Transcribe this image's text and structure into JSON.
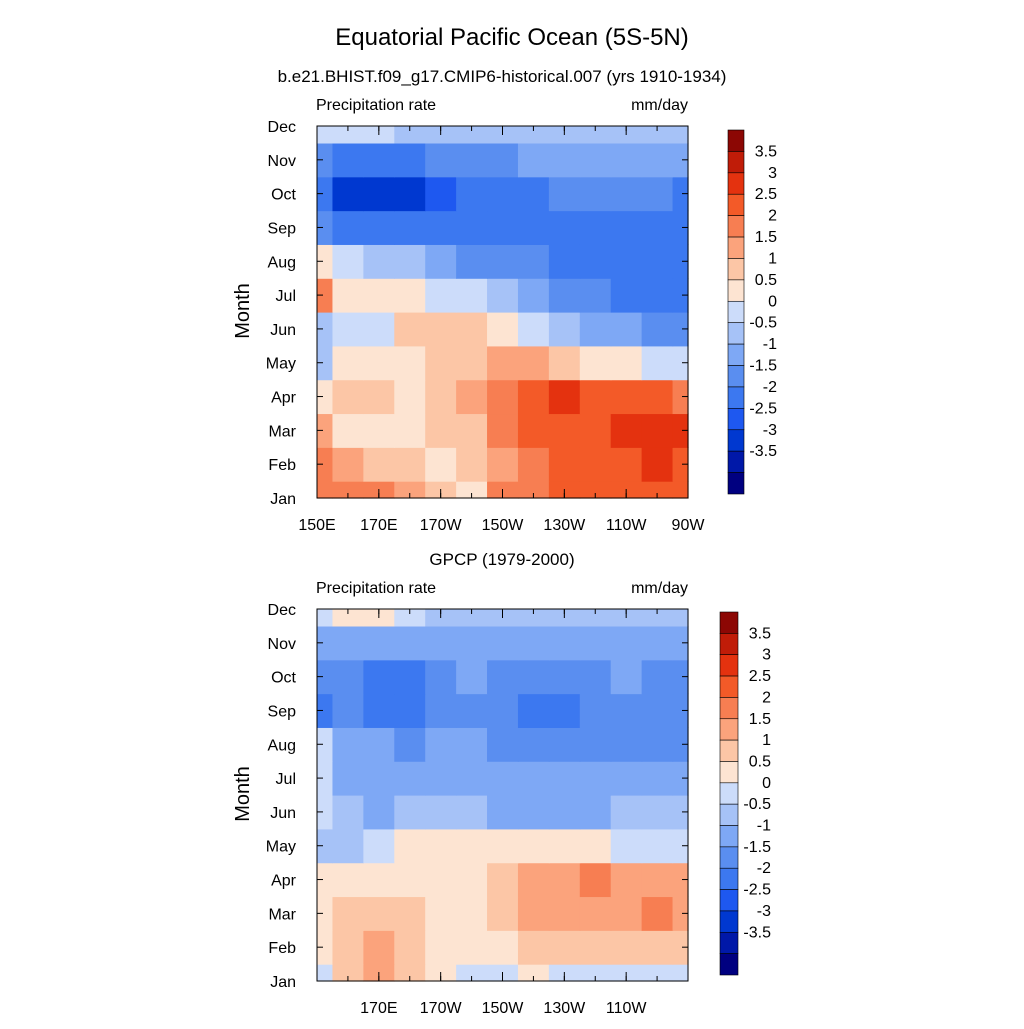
{
  "figure": {
    "title": "Equatorial Pacific Ocean (5S-5N)"
  },
  "colors": {
    "scale": [
      "#000080",
      "#0018a8",
      "#0038d0",
      "#1e58f0",
      "#3c78f0",
      "#5a8ef0",
      "#7ea8f5",
      "#a6c2f7",
      "#ccdcfa",
      "#fde4d2",
      "#fcc6a6",
      "#fba37c",
      "#f77e52",
      "#f35a28",
      "#e4320f",
      "#c01c08",
      "#8c0704"
    ]
  },
  "chart_data": [
    {
      "type": "heatmap",
      "title": "b.e21.BHIST.f09_g17.CMIP6-historical.007 (yrs 1910-1934)",
      "left_label": "Precipitation rate",
      "right_label": "mm/day",
      "ylabel": "Month",
      "xlabel": "",
      "x": [
        150,
        160,
        170,
        180,
        190,
        200,
        210,
        220,
        230,
        240,
        250,
        260,
        270
      ],
      "xlim": [
        150,
        270
      ],
      "x_tick_values": [
        150,
        170,
        190,
        210,
        230,
        250,
        270
      ],
      "x_tick_labels": [
        "150E",
        "170E",
        "170W",
        "150W",
        "130W",
        "110W",
        "90W"
      ],
      "y": [
        "Jan",
        "Feb",
        "Mar",
        "Apr",
        "May",
        "Jun",
        "Jul",
        "Aug",
        "Sep",
        "Oct",
        "Nov",
        "Dec"
      ],
      "values": [
        [
          2.4,
          2.0,
          2.1,
          1.6,
          1.0,
          0.9,
          2.0,
          2.4,
          2.5,
          2.6,
          2.7,
          2.8,
          2.7
        ],
        [
          2.2,
          1.6,
          1.4,
          1.1,
          0.9,
          1.0,
          1.8,
          2.2,
          2.5,
          2.7,
          2.9,
          3.0,
          2.9
        ],
        [
          1.5,
          0.7,
          0.6,
          0.6,
          1.2,
          1.4,
          2.2,
          2.5,
          2.7,
          2.9,
          3.1,
          3.4,
          3.1
        ],
        [
          0.6,
          1.1,
          1.3,
          0.7,
          1.3,
          1.5,
          2.3,
          2.6,
          3.1,
          2.8,
          2.6,
          2.6,
          2.4
        ],
        [
          -0.3,
          0.7,
          0.9,
          0.6,
          1.2,
          1.4,
          1.6,
          1.5,
          1.2,
          0.9,
          0.6,
          0.4,
          0.2
        ],
        [
          -0.4,
          0.2,
          0.3,
          1.1,
          1.2,
          1.0,
          0.6,
          0.1,
          -0.4,
          -0.7,
          -1.0,
          -1.2,
          -1.4
        ],
        [
          2.1,
          0.9,
          0.8,
          0.6,
          0.4,
          0.1,
          -0.4,
          -0.9,
          -1.2,
          -1.4,
          -1.6,
          -1.7,
          -1.8
        ],
        [
          0.7,
          0.1,
          -0.2,
          -0.5,
          -0.9,
          -1.2,
          -1.4,
          -1.5,
          -1.6,
          -1.7,
          -1.8,
          -1.9,
          -1.9
        ],
        [
          -1.3,
          -1.6,
          -1.7,
          -1.8,
          -1.8,
          -1.8,
          -1.7,
          -1.6,
          -1.7,
          -1.8,
          -1.8,
          -1.8,
          -1.7
        ],
        [
          -1.9,
          -2.6,
          -3.0,
          -2.6,
          -2.2,
          -1.9,
          -1.7,
          -1.6,
          -1.5,
          -1.5,
          -1.5,
          -1.4,
          -1.6
        ],
        [
          -1.2,
          -1.6,
          -1.7,
          -1.6,
          -1.4,
          -1.2,
          -1.1,
          -1.0,
          -0.9,
          -0.9,
          -0.8,
          -0.8,
          -0.9
        ],
        [
          0.1,
          0.3,
          0.2,
          -0.1,
          -0.3,
          -0.4,
          -0.5,
          -0.5,
          -0.5,
          -0.4,
          -0.3,
          -0.3,
          -0.4
        ]
      ],
      "colorbar": {
        "levels": [
          -3.5,
          -3,
          -2.5,
          -2,
          -1.5,
          -1,
          -0.5,
          0,
          0.5,
          1,
          1.5,
          2,
          2.5,
          3,
          3.5
        ],
        "labels": [
          "3.5",
          "3",
          "2.5",
          "2",
          "1.5",
          "1",
          "0.5",
          "0",
          "-0.5",
          "-1",
          "-1.5",
          "-2",
          "-2.5",
          "-3",
          "-3.5"
        ]
      }
    },
    {
      "type": "heatmap",
      "title": "GPCP (1979-2000)",
      "left_label": "Precipitation rate",
      "right_label": "mm/day",
      "ylabel": "Month",
      "xlabel": "",
      "x": [
        150,
        160,
        170,
        180,
        190,
        200,
        210,
        220,
        230,
        240,
        250,
        260,
        270
      ],
      "xlim": [
        150,
        270
      ],
      "x_tick_values": [
        170,
        190,
        210,
        230,
        250
      ],
      "x_tick_labels": [
        "170E",
        "170W",
        "150W",
        "130W",
        "110W"
      ],
      "y": [
        "Jan",
        "Feb",
        "Mar",
        "Apr",
        "May",
        "Jun",
        "Jul",
        "Aug",
        "Sep",
        "Oct",
        "Nov",
        "Dec"
      ],
      "values": [
        [
          0.4,
          1.2,
          1.5,
          1.3,
          0.6,
          0.4,
          0.4,
          0.5,
          0.4,
          0.3,
          0.3,
          0.2,
          0.3
        ],
        [
          0.6,
          1.0,
          1.5,
          1.2,
          0.7,
          0.5,
          0.8,
          1.0,
          1.1,
          1.0,
          1.2,
          1.4,
          1.3
        ],
        [
          0.6,
          1.3,
          1.2,
          1.0,
          0.6,
          0.6,
          1.2,
          1.6,
          1.8,
          1.7,
          1.8,
          2.0,
          1.6
        ],
        [
          0.5,
          0.9,
          0.8,
          0.6,
          0.7,
          0.8,
          1.3,
          1.6,
          1.8,
          2.0,
          1.7,
          1.9,
          1.6
        ],
        [
          -0.3,
          -0.2,
          0.2,
          0.8,
          0.9,
          0.8,
          0.8,
          0.7,
          0.6,
          0.5,
          0.4,
          0.3,
          0.3
        ],
        [
          0.3,
          -0.4,
          -0.6,
          -0.3,
          -0.2,
          -0.4,
          -0.6,
          -0.8,
          -0.8,
          -0.7,
          -0.5,
          -0.3,
          -0.2
        ],
        [
          0.4,
          -0.6,
          -0.8,
          -0.8,
          -0.9,
          -0.9,
          -0.9,
          -0.9,
          -0.8,
          -0.7,
          -0.6,
          -0.6,
          -0.6
        ],
        [
          0.1,
          -0.9,
          -1.0,
          -1.1,
          -1.0,
          -1.0,
          -1.1,
          -1.3,
          -1.3,
          -1.2,
          -1.1,
          -1.2,
          -1.1
        ],
        [
          -1.6,
          -1.1,
          -1.8,
          -1.9,
          -1.3,
          -1.1,
          -1.4,
          -1.6,
          -1.6,
          -1.5,
          -1.1,
          -1.4,
          -1.2
        ],
        [
          -1.2,
          -1.3,
          -1.6,
          -1.9,
          -1.2,
          -1.0,
          -1.3,
          -1.4,
          -1.4,
          -1.2,
          -1.0,
          -1.2,
          -1.1
        ],
        [
          -0.8,
          -0.8,
          -1.0,
          -1.0,
          -0.9,
          -0.8,
          -0.8,
          -0.7,
          -0.7,
          -0.7,
          -0.6,
          -0.6,
          -0.6
        ],
        [
          0.4,
          0.6,
          0.9,
          0.2,
          -0.2,
          -0.4,
          -0.5,
          -0.5,
          -0.4,
          -0.4,
          -0.4,
          -0.4,
          -0.4
        ]
      ],
      "colorbar": {
        "levels": [
          -3.5,
          -3,
          -2.5,
          -2,
          -1.5,
          -1,
          -0.5,
          0,
          0.5,
          1,
          1.5,
          2,
          2.5,
          3,
          3.5
        ],
        "labels": [
          "3.5",
          "3",
          "2.5",
          "2",
          "1.5",
          "1",
          "0.5",
          "0",
          "-0.5",
          "-1",
          "-1.5",
          "-2",
          "-2.5",
          "-3",
          "-3.5"
        ]
      }
    }
  ]
}
